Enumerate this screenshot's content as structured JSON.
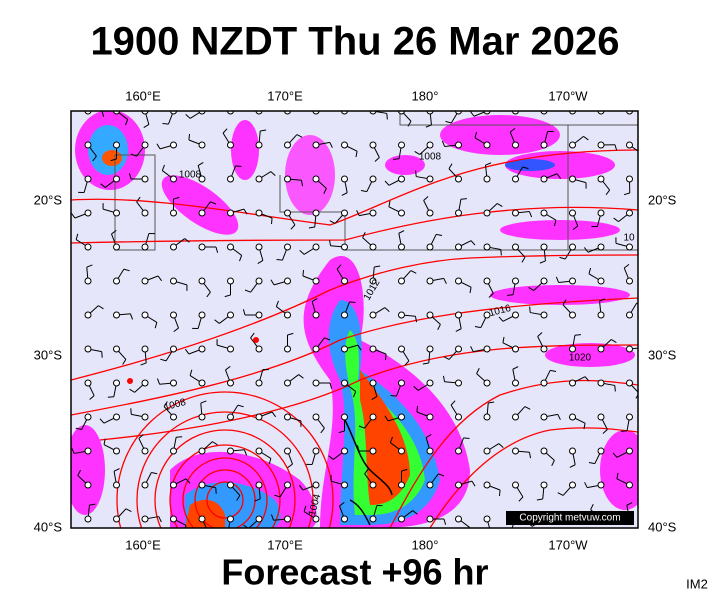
{
  "header": {
    "title": "1900 NZDT Thu 26 Mar 2026"
  },
  "footer": {
    "forecast": "Forecast +96 hr",
    "image_id": "IM2"
  },
  "map": {
    "longitude_labels": [
      "160°E",
      "170°E",
      "180°",
      "170°W"
    ],
    "latitude_labels": [
      "20°S",
      "30°S",
      "40°S"
    ],
    "isobar_labels": [
      "1008",
      "1008",
      "1012",
      "1016",
      "1020",
      "1008",
      "1004",
      "10"
    ],
    "copyright": "Copyright metvuw.com"
  }
}
